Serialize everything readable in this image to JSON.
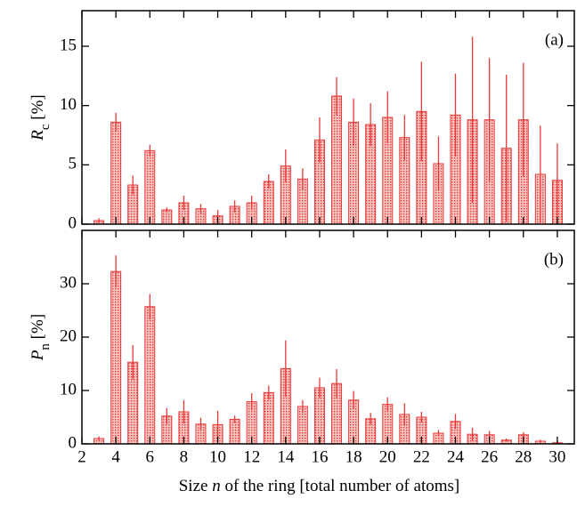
{
  "chart_data": [
    {
      "type": "bar",
      "panel_label": "(a)",
      "ylabel": [
        "R",
        "c",
        " [%]"
      ],
      "color": "#e8393a",
      "x": [
        3,
        4,
        5,
        6,
        7,
        8,
        9,
        10,
        11,
        12,
        13,
        14,
        15,
        16,
        17,
        18,
        19,
        20,
        21,
        22,
        23,
        24,
        25,
        26,
        27,
        28,
        29,
        30
      ],
      "values": [
        0.3,
        8.6,
        3.3,
        6.2,
        1.2,
        1.8,
        1.3,
        0.7,
        1.5,
        1.8,
        3.6,
        4.9,
        3.8,
        7.1,
        10.8,
        8.6,
        8.4,
        9.0,
        7.3,
        9.5,
        5.1,
        9.2,
        8.8,
        8.8,
        6.4,
        8.8,
        4.2,
        3.7
      ],
      "errors": [
        0.2,
        0.8,
        0.8,
        0.5,
        0.2,
        0.6,
        0.4,
        0.5,
        0.5,
        0.6,
        0.6,
        1.4,
        0.9,
        1.9,
        1.6,
        2.0,
        1.8,
        2.2,
        1.9,
        4.2,
        2.3,
        3.5,
        7.0,
        5.2,
        6.2,
        4.8,
        4.1,
        3.1
      ],
      "xlim": [
        2,
        31
      ],
      "ylim": [
        0,
        18
      ],
      "yticks": [
        0,
        5,
        10,
        15
      ]
    },
    {
      "type": "bar",
      "panel_label": "(b)",
      "ylabel": [
        "P",
        "n",
        " [%]"
      ],
      "color": "#e8393a",
      "xlabel": [
        "Size ",
        "n",
        " of the ring [total number of atoms]"
      ],
      "x": [
        3,
        4,
        5,
        6,
        7,
        8,
        9,
        10,
        11,
        12,
        13,
        14,
        15,
        16,
        17,
        18,
        19,
        20,
        21,
        22,
        23,
        24,
        25,
        26,
        27,
        28,
        29,
        30
      ],
      "values": [
        1.0,
        32.3,
        15.3,
        25.7,
        5.2,
        6.0,
        3.7,
        3.6,
        4.6,
        7.9,
        9.6,
        14.1,
        7.0,
        10.5,
        11.3,
        8.2,
        4.7,
        7.4,
        5.5,
        5.0,
        2.0,
        4.2,
        1.8,
        1.7,
        0.7,
        1.7,
        0.5,
        0.2
      ],
      "errors": [
        0.4,
        3.0,
        3.2,
        2.4,
        1.5,
        2.2,
        1.2,
        2.6,
        0.7,
        1.6,
        1.3,
        5.3,
        1.2,
        1.9,
        2.7,
        1.7,
        1.1,
        1.3,
        2.1,
        1.0,
        0.6,
        1.4,
        1.2,
        0.7,
        0.3,
        0.5,
        0.3,
        0.3
      ],
      "xlim": [
        2,
        31
      ],
      "ylim": [
        0,
        40
      ],
      "yticks": [
        0,
        10,
        20,
        30
      ],
      "xticks": [
        2,
        4,
        6,
        8,
        10,
        12,
        14,
        16,
        18,
        20,
        22,
        24,
        26,
        28,
        30
      ]
    }
  ]
}
